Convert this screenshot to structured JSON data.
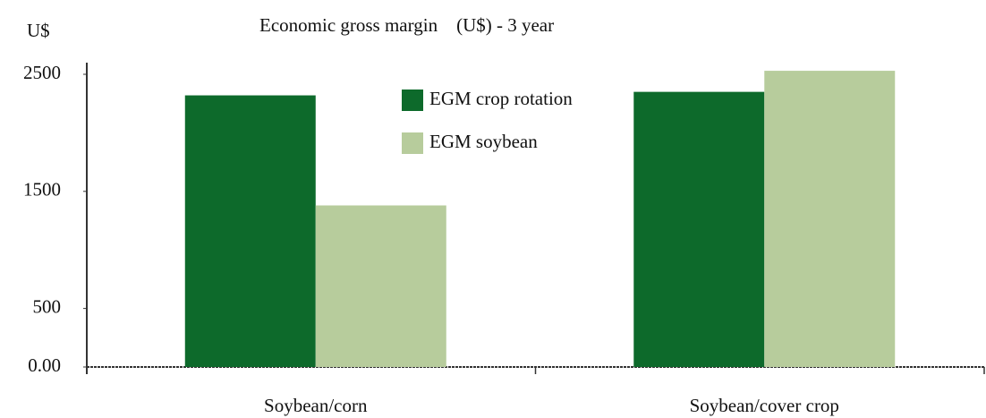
{
  "chart_data": {
    "type": "bar",
    "title": "Economic gross margin    (U$) - 3 year",
    "y_label": "U$",
    "categories": [
      "Soybean/corn",
      "Soybean/cover crop"
    ],
    "series": [
      {
        "name": "EGM crop rotation",
        "color": "#0d6a2b",
        "values": [
          2320,
          2350
        ]
      },
      {
        "name": "EGM soybean",
        "color": "#b7cc9c",
        "values": [
          1380,
          2530
        ]
      }
    ],
    "ylim": [
      0,
      2500
    ],
    "yticks": [
      {
        "value": 0,
        "label": "0.00"
      },
      500,
      1500,
      2500
    ],
    "legend": "top"
  }
}
